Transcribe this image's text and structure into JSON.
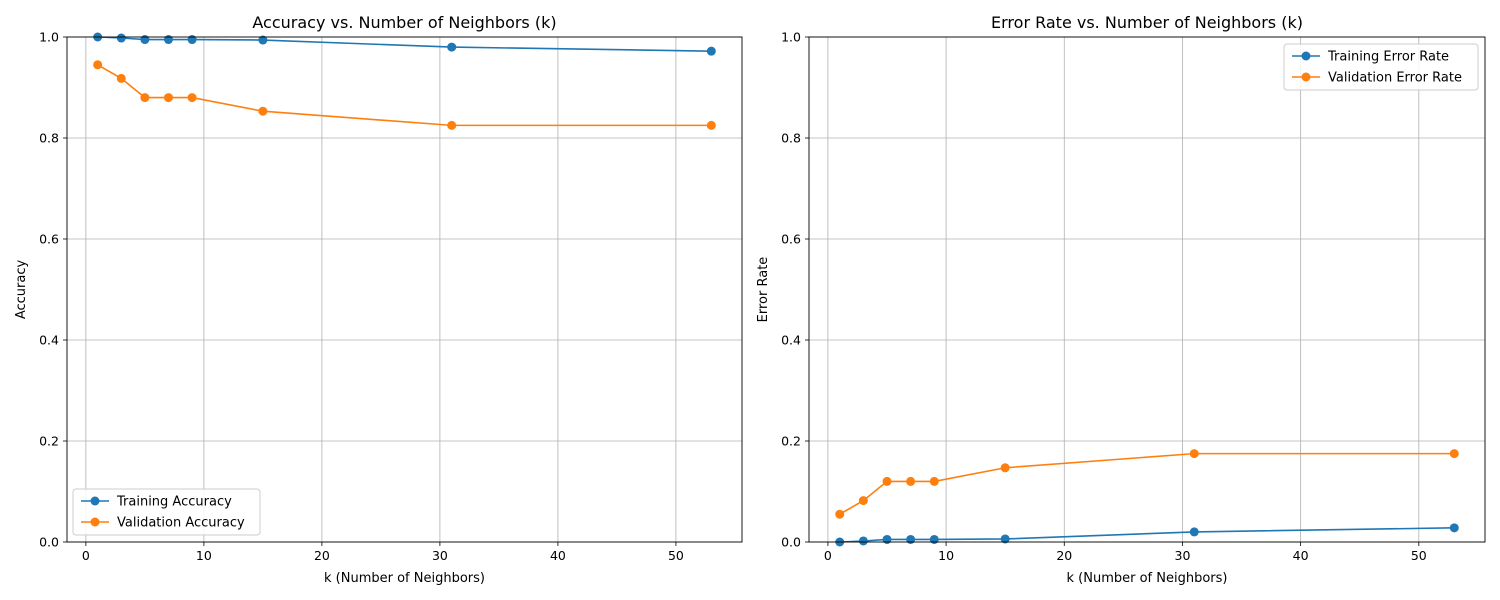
{
  "chart_data": [
    {
      "type": "line",
      "title": "Accuracy vs. Number of Neighbors (k)",
      "xlabel": "k (Number of Neighbors)",
      "ylabel": "Accuracy",
      "xlim": [
        -1.6,
        55.6
      ],
      "ylim": [
        0,
        1.0
      ],
      "xticks": [
        0,
        10,
        20,
        30,
        40,
        50
      ],
      "yticks": [
        0.0,
        0.2,
        0.4,
        0.6,
        0.8,
        1.0
      ],
      "ytick_labels": [
        "0.0",
        "0.2",
        "0.4",
        "0.6",
        "0.8",
        "1.0"
      ],
      "grid": true,
      "legend_position": "lower-left",
      "x": [
        1,
        3,
        5,
        7,
        9,
        15,
        31,
        53
      ],
      "series": [
        {
          "name": "Training Accuracy",
          "color": "#1f77b4",
          "values": [
            1.0,
            0.998,
            0.995,
            0.995,
            0.995,
            0.994,
            0.98,
            0.972
          ]
        },
        {
          "name": "Validation Accuracy",
          "color": "#ff7f0e",
          "values": [
            0.945,
            0.918,
            0.88,
            0.88,
            0.88,
            0.853,
            0.825,
            0.825
          ]
        }
      ]
    },
    {
      "type": "line",
      "title": "Error Rate vs. Number of Neighbors (k)",
      "xlabel": "k (Number of Neighbors)",
      "ylabel": "Error Rate",
      "xlim": [
        -1.6,
        55.6
      ],
      "ylim": [
        0,
        1.0
      ],
      "xticks": [
        0,
        10,
        20,
        30,
        40,
        50
      ],
      "yticks": [
        0.0,
        0.2,
        0.4,
        0.6,
        0.8,
        1.0
      ],
      "ytick_labels": [
        "0.0",
        "0.2",
        "0.4",
        "0.6",
        "0.8",
        "1.0"
      ],
      "grid": true,
      "legend_position": "upper-right",
      "x": [
        1,
        3,
        5,
        7,
        9,
        15,
        31,
        53
      ],
      "series": [
        {
          "name": "Training Error Rate",
          "color": "#1f77b4",
          "values": [
            0.0,
            0.002,
            0.005,
            0.005,
            0.005,
            0.006,
            0.02,
            0.028
          ]
        },
        {
          "name": "Validation Error Rate",
          "color": "#ff7f0e",
          "values": [
            0.055,
            0.082,
            0.12,
            0.12,
            0.12,
            0.147,
            0.175,
            0.175
          ]
        }
      ]
    }
  ]
}
